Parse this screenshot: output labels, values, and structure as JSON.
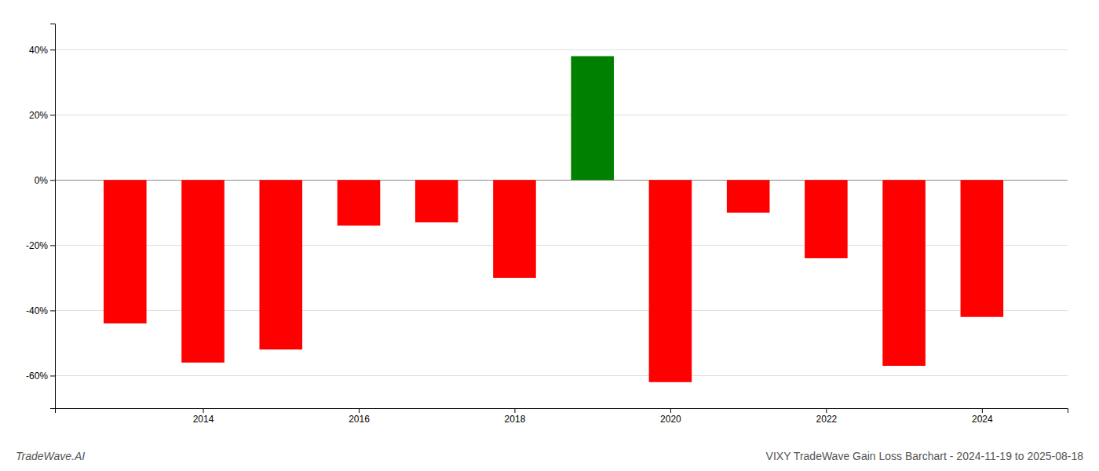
{
  "chart_data": {
    "type": "bar",
    "title": "VIXY TradeWave Gain Loss Barchart - 2024-11-19 to 2025-08-18",
    "annotations": [
      "TradeWave.AI"
    ],
    "x": [
      2013,
      2014,
      2015,
      2016,
      2017,
      2018,
      2019,
      2020,
      2021,
      2022,
      2023,
      2024
    ],
    "values": [
      -44,
      -56,
      -52,
      -14,
      -13,
      -30,
      38,
      -62,
      -10,
      -24,
      -57,
      -42
    ],
    "colors": [
      "#ff0000",
      "#ff0000",
      "#ff0000",
      "#ff0000",
      "#ff0000",
      "#ff0000",
      "#008000",
      "#ff0000",
      "#ff0000",
      "#ff0000",
      "#ff0000",
      "#ff0000"
    ],
    "xlim": [
      2012.1,
      2025.1
    ],
    "xticks": [
      2014,
      2016,
      2018,
      2020,
      2022,
      2024
    ],
    "ylim": [
      -70,
      48
    ],
    "yticks": [
      {
        "value": -60,
        "label": "-60%"
      },
      {
        "value": -40,
        "label": "-40%"
      },
      {
        "value": -20,
        "label": "-20%"
      },
      {
        "value": 0,
        "label": "0%"
      },
      {
        "value": 20,
        "label": "20%"
      },
      {
        "value": 40,
        "label": "40%"
      }
    ],
    "grid": true
  }
}
